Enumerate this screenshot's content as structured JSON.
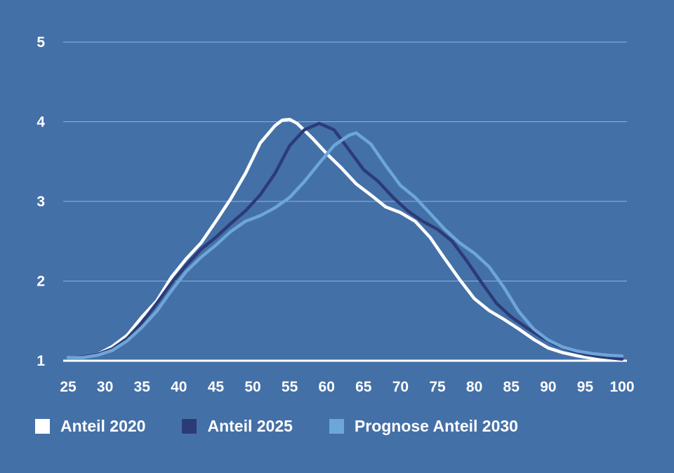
{
  "chart_data": {
    "type": "line",
    "title": "",
    "xlabel": "",
    "ylabel": "",
    "xlim": [
      25,
      100
    ],
    "ylim": [
      1,
      5
    ],
    "xticks": [
      25,
      30,
      35,
      40,
      45,
      50,
      55,
      60,
      65,
      70,
      75,
      80,
      85,
      90,
      95,
      100
    ],
    "yticks": [
      1,
      2,
      3,
      4,
      5
    ],
    "grid": "horizontal",
    "legend_position": "bottom",
    "series": [
      {
        "name": "Anteil 2020",
        "color": "#ffffff",
        "x": [
          25,
          27,
          29,
          31,
          33,
          35,
          37,
          39,
          41,
          43,
          45,
          47,
          49,
          51,
          53,
          54,
          55,
          56,
          58,
          60,
          62,
          64,
          66,
          68,
          70,
          72,
          74,
          76,
          78,
          80,
          82,
          84,
          86,
          88,
          90,
          92,
          94,
          96,
          98,
          100
        ],
        "y": [
          1.04,
          1.05,
          1.08,
          1.18,
          1.32,
          1.55,
          1.75,
          2.05,
          2.28,
          2.48,
          2.75,
          3.03,
          3.35,
          3.73,
          3.95,
          4.02,
          4.03,
          3.98,
          3.8,
          3.6,
          3.42,
          3.22,
          3.08,
          2.93,
          2.86,
          2.75,
          2.55,
          2.28,
          2.02,
          1.78,
          1.63,
          1.52,
          1.4,
          1.27,
          1.16,
          1.1,
          1.06,
          1.03,
          1.02,
          1.01
        ]
      },
      {
        "name": "Anteil 2025",
        "color": "#2c3b78",
        "x": [
          25,
          27,
          29,
          31,
          33,
          35,
          37,
          39,
          41,
          43,
          45,
          47,
          49,
          51,
          53,
          55,
          57,
          59,
          61,
          63,
          65,
          67,
          69,
          71,
          73,
          75,
          77,
          79,
          81,
          83,
          85,
          87,
          89,
          91,
          93,
          95,
          97,
          99,
          100
        ],
        "y": [
          1.04,
          1.05,
          1.08,
          1.15,
          1.28,
          1.48,
          1.72,
          1.98,
          2.2,
          2.4,
          2.55,
          2.72,
          2.88,
          3.08,
          3.35,
          3.7,
          3.9,
          3.98,
          3.9,
          3.65,
          3.4,
          3.25,
          3.05,
          2.88,
          2.75,
          2.65,
          2.5,
          2.25,
          1.98,
          1.72,
          1.55,
          1.42,
          1.3,
          1.2,
          1.13,
          1.08,
          1.05,
          1.03,
          1.02
        ]
      },
      {
        "name": "Prognose Anteil 2030",
        "color": "#6da6d9",
        "x": [
          25,
          27,
          29,
          31,
          33,
          35,
          37,
          39,
          41,
          43,
          45,
          47,
          49,
          51,
          53,
          55,
          57,
          59,
          61,
          63,
          64,
          66,
          68,
          70,
          72,
          74,
          76,
          78,
          80,
          82,
          84,
          86,
          88,
          90,
          92,
          94,
          96,
          98,
          100
        ],
        "y": [
          1.04,
          1.04,
          1.07,
          1.13,
          1.25,
          1.42,
          1.62,
          1.88,
          2.12,
          2.3,
          2.45,
          2.62,
          2.75,
          2.82,
          2.92,
          3.05,
          3.25,
          3.48,
          3.7,
          3.83,
          3.86,
          3.72,
          3.45,
          3.2,
          3.05,
          2.85,
          2.65,
          2.48,
          2.35,
          2.18,
          1.92,
          1.62,
          1.4,
          1.26,
          1.17,
          1.12,
          1.09,
          1.07,
          1.06
        ]
      }
    ]
  }
}
